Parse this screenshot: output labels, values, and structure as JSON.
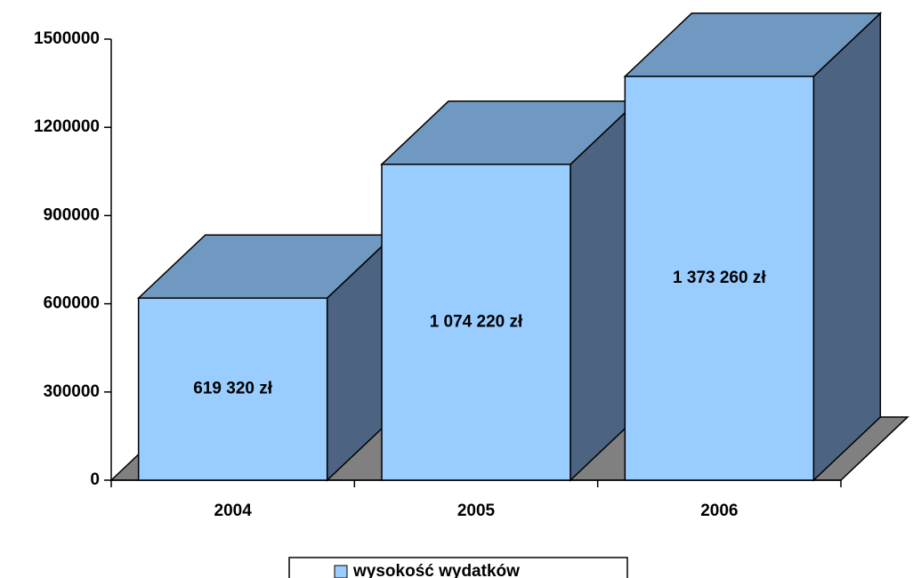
{
  "chart_data": {
    "type": "bar3d",
    "categories": [
      "2004",
      "2005",
      "2006"
    ],
    "series": [
      {
        "name": "wysokość wydatków",
        "color": "#99ccff",
        "values": [
          619320,
          1074220,
          1373260
        ],
        "value_labels": [
          "619 320 zł",
          "1 074 220 zł",
          "1 373 260 zł"
        ]
      }
    ],
    "ylim": [
      0,
      1500000
    ],
    "yticks": [
      0,
      300000,
      600000,
      900000,
      1200000,
      1500000
    ],
    "legend": "bottom"
  }
}
